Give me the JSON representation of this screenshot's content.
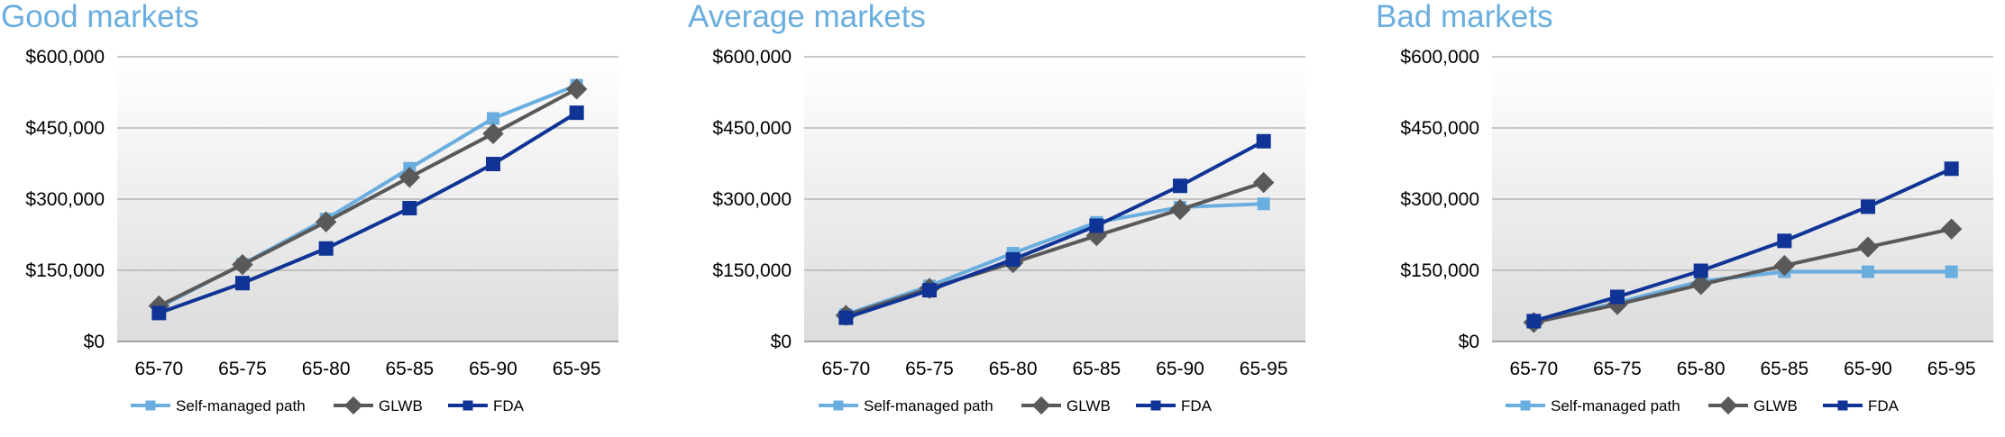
{
  "colors": {
    "self_managed": "#6aaee0",
    "glwb": "#595959",
    "fda": "#0f3496",
    "title": "#6aaee0",
    "grid": "#b5b5b5"
  },
  "chart_data": [
    {
      "type": "line",
      "title": "Good markets",
      "categories": [
        "65-70",
        "65-75",
        "65-80",
        "65-85",
        "65-90",
        "65-95"
      ],
      "yticks": [
        "$0",
        "$150,000",
        "$300,000",
        "$450,000",
        "$600,000"
      ],
      "ylim": [
        0,
        600000
      ],
      "grid": true,
      "legend_position": "bottom",
      "series": [
        {
          "name": "Self-managed path",
          "marker": "square",
          "values": [
            72000,
            163000,
            258000,
            365000,
            470000,
            540000
          ]
        },
        {
          "name": "GLWB",
          "marker": "diamond",
          "values": [
            75000,
            162000,
            252000,
            346000,
            438000,
            532000
          ]
        },
        {
          "name": "FDA",
          "marker": "square",
          "values": [
            60000,
            123000,
            196000,
            281000,
            374000,
            482000
          ]
        }
      ]
    },
    {
      "type": "line",
      "title": "Average markets",
      "categories": [
        "65-70",
        "65-75",
        "65-80",
        "65-85",
        "65-90",
        "65-95"
      ],
      "yticks": [
        "$0",
        "$150,000",
        "$300,000",
        "$450,000",
        "$600,000"
      ],
      "ylim": [
        0,
        600000
      ],
      "grid": true,
      "legend_position": "bottom",
      "series": [
        {
          "name": "Self-managed path",
          "marker": "square",
          "values": [
            57000,
            117000,
            186000,
            251000,
            283000,
            290000
          ]
        },
        {
          "name": "GLWB",
          "marker": "diamond",
          "values": [
            55000,
            112000,
            166000,
            223000,
            278000,
            335000
          ]
        },
        {
          "name": "FDA",
          "marker": "square",
          "values": [
            50000,
            108000,
            173000,
            244000,
            328000,
            422000
          ]
        }
      ]
    },
    {
      "type": "line",
      "title": "Bad markets",
      "categories": [
        "65-70",
        "65-75",
        "65-80",
        "65-85",
        "65-90",
        "65-95"
      ],
      "yticks": [
        "$0",
        "$150,000",
        "$300,000",
        "$450,000",
        "$600,000"
      ],
      "ylim": [
        0,
        600000
      ],
      "grid": true,
      "legend_position": "bottom",
      "series": [
        {
          "name": "Self-managed path",
          "marker": "square",
          "values": [
            40000,
            82000,
            127000,
            147000,
            147000,
            147000
          ]
        },
        {
          "name": "GLWB",
          "marker": "diamond",
          "values": [
            40000,
            78000,
            120000,
            160000,
            199000,
            237000
          ]
        },
        {
          "name": "FDA",
          "marker": "square",
          "values": [
            43000,
            94000,
            149000,
            212000,
            284000,
            364000
          ]
        }
      ]
    }
  ]
}
